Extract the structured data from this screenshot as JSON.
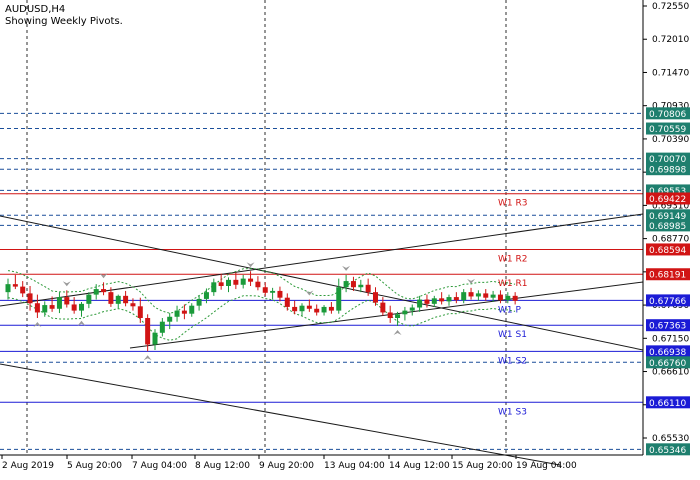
{
  "header": {
    "symbol": "AUDUSD,H4",
    "subtitle": "Showing Weekly Pivots."
  },
  "chart_data": {
    "type": "candlestick",
    "symbol": "AUDUSD",
    "timeframe": "H4",
    "ylim": [
      0.6505,
      0.726
    ],
    "y_ticks": [
      "0.72550",
      "0.72010",
      "0.71470",
      "0.70930",
      "0.70390",
      "0.69850",
      "0.69310",
      "0.68770",
      "0.68230",
      "0.67690",
      "0.67150",
      "0.66610",
      "0.66070",
      "0.65530"
    ],
    "x_ticks": [
      "2 Aug 2019",
      "5 Aug 20:00",
      "7 Aug 04:00",
      "8 Aug 12:00",
      "9 Aug 20:00",
      "13 Aug 04:00",
      "14 Aug 12:00",
      "15 Aug 20:00",
      "19 Aug 04:00"
    ],
    "pivot_levels": [
      {
        "name": "W1 R3",
        "price": 0.695,
        "color": "#d11414"
      },
      {
        "name": "W1 R2",
        "price": 0.68594,
        "color": "#d11414"
      },
      {
        "name": "W1 R1",
        "price": 0.68191,
        "color": "#d11414"
      },
      {
        "name": "W1 P",
        "price": 0.67766,
        "color": "#1b1bd6"
      },
      {
        "name": "W1 S1",
        "price": 0.67363,
        "color": "#1b1bd6"
      },
      {
        "name": "W1 S2",
        "price": 0.66938,
        "color": "#1b1bd6"
      },
      {
        "name": "W1 S3",
        "price": 0.6611,
        "color": "#1b1bd6"
      }
    ],
    "level_labels": [
      {
        "value": "0.70806",
        "price": 0.70806,
        "bg": "#1e7f6e"
      },
      {
        "value": "0.70559",
        "price": 0.70559,
        "bg": "#1e7f6e"
      },
      {
        "value": "0.70070",
        "price": 0.7007,
        "bg": "#1e7f6e"
      },
      {
        "value": "0.69898",
        "price": 0.69898,
        "bg": "#1e7f6e"
      },
      {
        "value": "0.69553",
        "price": 0.69553,
        "bg": "#1e7f6e"
      },
      {
        "value": "0.69422",
        "price": 0.69422,
        "bg": "#d11414"
      },
      {
        "value": "0.69149",
        "price": 0.69149,
        "bg": "#1e7f6e"
      },
      {
        "value": "0.68985",
        "price": 0.68985,
        "bg": "#1e7f6e"
      },
      {
        "value": "0.68594",
        "price": 0.68594,
        "bg": "#d11414"
      },
      {
        "value": "0.68191",
        "price": 0.68191,
        "bg": "#d11414"
      },
      {
        "value": "0.67766",
        "price": 0.67766,
        "bg": "#1b1bd6"
      },
      {
        "value": "0.67363",
        "price": 0.67363,
        "bg": "#1b1bd6"
      },
      {
        "value": "0.66938",
        "price": 0.66938,
        "bg": "#1b1bd6"
      },
      {
        "value": "0.66760",
        "price": 0.6676,
        "bg": "#1e7f6e"
      },
      {
        "value": "0.66110",
        "price": 0.6611,
        "bg": "#1b1bd6"
      },
      {
        "value": "0.65346",
        "price": 0.65346,
        "bg": "#1e7f6e"
      }
    ],
    "dashed_levels": [
      0.70806,
      0.70559,
      0.7007,
      0.69898,
      0.69553,
      0.69149,
      0.68985,
      0.6676,
      0.65346
    ],
    "candles": [
      {
        "o": 0.679,
        "h": 0.6812,
        "l": 0.6778,
        "c": 0.6803
      },
      {
        "o": 0.6803,
        "h": 0.6818,
        "l": 0.6795,
        "c": 0.6799
      },
      {
        "o": 0.6799,
        "h": 0.6808,
        "l": 0.6782,
        "c": 0.6788
      },
      {
        "o": 0.6788,
        "h": 0.68,
        "l": 0.676,
        "c": 0.6772
      },
      {
        "o": 0.6772,
        "h": 0.6786,
        "l": 0.6748,
        "c": 0.6757
      },
      {
        "o": 0.6757,
        "h": 0.6775,
        "l": 0.675,
        "c": 0.6769
      },
      {
        "o": 0.6769,
        "h": 0.6783,
        "l": 0.6758,
        "c": 0.6763
      },
      {
        "o": 0.6763,
        "h": 0.679,
        "l": 0.6756,
        "c": 0.6782
      },
      {
        "o": 0.6782,
        "h": 0.6793,
        "l": 0.6765,
        "c": 0.677
      },
      {
        "o": 0.677,
        "h": 0.6782,
        "l": 0.6755,
        "c": 0.676
      },
      {
        "o": 0.676,
        "h": 0.6774,
        "l": 0.675,
        "c": 0.6771
      },
      {
        "o": 0.6771,
        "h": 0.679,
        "l": 0.6764,
        "c": 0.6786
      },
      {
        "o": 0.6786,
        "h": 0.6803,
        "l": 0.6778,
        "c": 0.6795
      },
      {
        "o": 0.6795,
        "h": 0.6806,
        "l": 0.6785,
        "c": 0.679
      },
      {
        "o": 0.679,
        "h": 0.6798,
        "l": 0.6766,
        "c": 0.6771
      },
      {
        "o": 0.6771,
        "h": 0.6786,
        "l": 0.6764,
        "c": 0.6784
      },
      {
        "o": 0.6784,
        "h": 0.6792,
        "l": 0.6767,
        "c": 0.6772
      },
      {
        "o": 0.6772,
        "h": 0.678,
        "l": 0.676,
        "c": 0.6767
      },
      {
        "o": 0.6767,
        "h": 0.6781,
        "l": 0.674,
        "c": 0.6748
      },
      {
        "o": 0.6748,
        "h": 0.6754,
        "l": 0.6694,
        "c": 0.6705
      },
      {
        "o": 0.6705,
        "h": 0.673,
        "l": 0.6696,
        "c": 0.6724
      },
      {
        "o": 0.6724,
        "h": 0.6748,
        "l": 0.6718,
        "c": 0.6742
      },
      {
        "o": 0.6742,
        "h": 0.6756,
        "l": 0.673,
        "c": 0.675
      },
      {
        "o": 0.675,
        "h": 0.6768,
        "l": 0.6742,
        "c": 0.676
      },
      {
        "o": 0.676,
        "h": 0.677,
        "l": 0.6746,
        "c": 0.6755
      },
      {
        "o": 0.6755,
        "h": 0.6772,
        "l": 0.675,
        "c": 0.6768
      },
      {
        "o": 0.6768,
        "h": 0.6785,
        "l": 0.676,
        "c": 0.6779
      },
      {
        "o": 0.6779,
        "h": 0.6796,
        "l": 0.6772,
        "c": 0.679
      },
      {
        "o": 0.679,
        "h": 0.6812,
        "l": 0.6784,
        "c": 0.6806
      },
      {
        "o": 0.6806,
        "h": 0.682,
        "l": 0.6794,
        "c": 0.68
      },
      {
        "o": 0.68,
        "h": 0.6814,
        "l": 0.679,
        "c": 0.681
      },
      {
        "o": 0.681,
        "h": 0.6822,
        "l": 0.6795,
        "c": 0.6802
      },
      {
        "o": 0.6802,
        "h": 0.6818,
        "l": 0.6796,
        "c": 0.6812
      },
      {
        "o": 0.6812,
        "h": 0.6824,
        "l": 0.68,
        "c": 0.6807
      },
      {
        "o": 0.6807,
        "h": 0.6816,
        "l": 0.6793,
        "c": 0.6798
      },
      {
        "o": 0.6798,
        "h": 0.6806,
        "l": 0.6784,
        "c": 0.6789
      },
      {
        "o": 0.6789,
        "h": 0.6797,
        "l": 0.6778,
        "c": 0.6792
      },
      {
        "o": 0.6792,
        "h": 0.6799,
        "l": 0.6775,
        "c": 0.6781
      },
      {
        "o": 0.6781,
        "h": 0.6788,
        "l": 0.676,
        "c": 0.6766
      },
      {
        "o": 0.6766,
        "h": 0.6776,
        "l": 0.6754,
        "c": 0.6759
      },
      {
        "o": 0.6759,
        "h": 0.6772,
        "l": 0.6752,
        "c": 0.6768
      },
      {
        "o": 0.6768,
        "h": 0.6778,
        "l": 0.6758,
        "c": 0.6763
      },
      {
        "o": 0.6763,
        "h": 0.677,
        "l": 0.6752,
        "c": 0.6757
      },
      {
        "o": 0.6757,
        "h": 0.6769,
        "l": 0.6752,
        "c": 0.6766
      },
      {
        "o": 0.6766,
        "h": 0.6774,
        "l": 0.6755,
        "c": 0.676
      },
      {
        "o": 0.676,
        "h": 0.6812,
        "l": 0.6755,
        "c": 0.6798
      },
      {
        "o": 0.6798,
        "h": 0.6818,
        "l": 0.679,
        "c": 0.6808
      },
      {
        "o": 0.6808,
        "h": 0.6815,
        "l": 0.6792,
        "c": 0.6798
      },
      {
        "o": 0.6798,
        "h": 0.681,
        "l": 0.679,
        "c": 0.6802
      },
      {
        "o": 0.6802,
        "h": 0.6812,
        "l": 0.6784,
        "c": 0.679
      },
      {
        "o": 0.679,
        "h": 0.6798,
        "l": 0.6768,
        "c": 0.6773
      },
      {
        "o": 0.6773,
        "h": 0.6782,
        "l": 0.6752,
        "c": 0.6757
      },
      {
        "o": 0.6757,
        "h": 0.6768,
        "l": 0.674,
        "c": 0.6748
      },
      {
        "o": 0.6748,
        "h": 0.6758,
        "l": 0.6735,
        "c": 0.6754
      },
      {
        "o": 0.6754,
        "h": 0.6766,
        "l": 0.6744,
        "c": 0.676
      },
      {
        "o": 0.676,
        "h": 0.677,
        "l": 0.6752,
        "c": 0.6765
      },
      {
        "o": 0.6765,
        "h": 0.6784,
        "l": 0.6758,
        "c": 0.6778
      },
      {
        "o": 0.6778,
        "h": 0.6786,
        "l": 0.6765,
        "c": 0.6771
      },
      {
        "o": 0.6771,
        "h": 0.6784,
        "l": 0.6766,
        "c": 0.678
      },
      {
        "o": 0.678,
        "h": 0.679,
        "l": 0.677,
        "c": 0.6775
      },
      {
        "o": 0.6775,
        "h": 0.6786,
        "l": 0.6768,
        "c": 0.6782
      },
      {
        "o": 0.6782,
        "h": 0.679,
        "l": 0.6772,
        "c": 0.6777
      },
      {
        "o": 0.6777,
        "h": 0.6795,
        "l": 0.6772,
        "c": 0.679
      },
      {
        "o": 0.679,
        "h": 0.6797,
        "l": 0.6778,
        "c": 0.6783
      },
      {
        "o": 0.6783,
        "h": 0.6793,
        "l": 0.6776,
        "c": 0.6788
      },
      {
        "o": 0.6788,
        "h": 0.6795,
        "l": 0.6776,
        "c": 0.6781
      },
      {
        "o": 0.6781,
        "h": 0.6792,
        "l": 0.6774,
        "c": 0.6786
      },
      {
        "o": 0.6786,
        "h": 0.6793,
        "l": 0.6772,
        "c": 0.6777
      },
      {
        "o": 0.6777,
        "h": 0.679,
        "l": 0.6772,
        "c": 0.6784
      },
      {
        "o": 0.6784,
        "h": 0.679,
        "l": 0.677,
        "c": 0.6776
      }
    ],
    "colors": {
      "bull": "#1a9a3a",
      "bear": "#d11414",
      "grid": "#2d2d2d",
      "band": "#2e9a3a",
      "fractal": "#9a9a9a",
      "trend": "#1a1a1a"
    }
  }
}
